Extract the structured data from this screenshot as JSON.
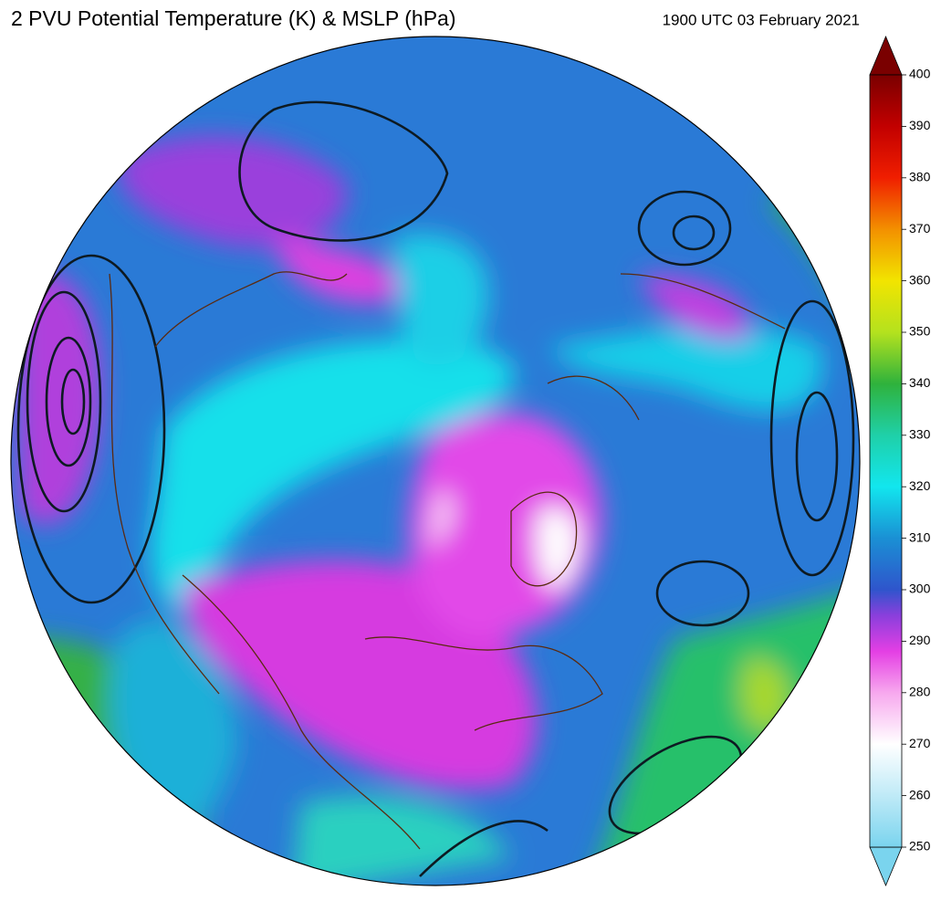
{
  "header": {
    "title": "2 PVU Potential Temperature (K) & MSLP (hPa)",
    "timestamp": "1900 UTC 03 February 2021"
  },
  "colorbar": {
    "lim": [
      250,
      400
    ],
    "ticks": [
      250,
      260,
      270,
      280,
      290,
      300,
      310,
      320,
      330,
      340,
      350,
      360,
      370,
      380,
      390,
      400
    ],
    "stops": [
      {
        "value": 250,
        "color": "#7ad4ee"
      },
      {
        "value": 260,
        "color": "#bfeaf7"
      },
      {
        "value": 270,
        "color": "#ffffff"
      },
      {
        "value": 280,
        "color": "#f7a8ee"
      },
      {
        "value": 288,
        "color": "#e43fe4"
      },
      {
        "value": 295,
        "color": "#8a3fdc"
      },
      {
        "value": 300,
        "color": "#2f55cc"
      },
      {
        "value": 310,
        "color": "#1a90d4"
      },
      {
        "value": 320,
        "color": "#12e6ee"
      },
      {
        "value": 330,
        "color": "#1fd0a8"
      },
      {
        "value": 340,
        "color": "#2fb23c"
      },
      {
        "value": 350,
        "color": "#b4e21e"
      },
      {
        "value": 360,
        "color": "#f2e400"
      },
      {
        "value": 370,
        "color": "#f39000"
      },
      {
        "value": 380,
        "color": "#f01e00"
      },
      {
        "value": 390,
        "color": "#c20000"
      },
      {
        "value": 400,
        "color": "#7a0000"
      }
    ]
  }
}
